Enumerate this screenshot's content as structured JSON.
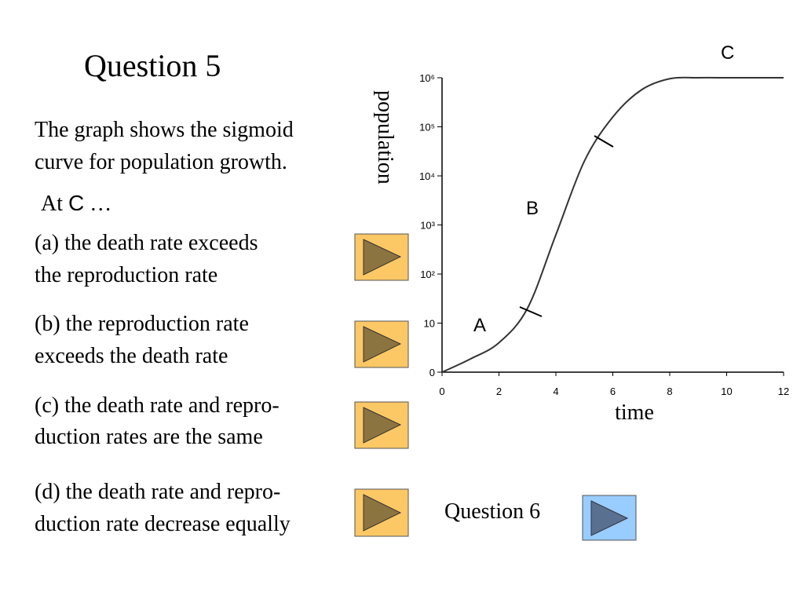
{
  "title": "Question 5",
  "intro": [
    "The graph shows the sigmoid",
    "curve for population growth."
  ],
  "prompt": {
    "before": "At",
    "letter": "C",
    "after": "…"
  },
  "options": [
    [
      "(a) the death rate exceeds",
      "the reproduction rate"
    ],
    [
      "(b) the reproduction rate",
      "exceeds the death rate"
    ],
    [
      "(c) the death rate and repro-",
      "duction rates are the same"
    ],
    [
      "(d) the death rate and repro-",
      "duction rate decrease equally"
    ]
  ],
  "next": "Question 6",
  "graph": {
    "type": "line",
    "xlabel": "time",
    "ylabel": "population",
    "xlim": [
      0,
      12
    ],
    "xticks": [
      0,
      2,
      4,
      6,
      8,
      10,
      12
    ],
    "ylim": [
      0,
      6
    ],
    "yticks": [
      0,
      {
        "value": 1,
        "label": "10"
      },
      {
        "value": 2,
        "label": "10²"
      },
      {
        "value": 3,
        "label": "10³"
      },
      {
        "value": 4,
        "label": "10⁴"
      },
      {
        "value": 5,
        "label": "10⁵"
      },
      {
        "value": 6,
        "label": "10⁶"
      }
    ],
    "x": [
      0,
      1,
      2,
      3,
      4,
      5,
      6,
      7,
      8,
      9,
      10,
      11,
      12
    ],
    "values": [
      0,
      0.27,
      0.6,
      1.3,
      2.8,
      4.3,
      5.2,
      5.75,
      5.98,
      6,
      6,
      6,
      6
    ],
    "color": "#333333",
    "annotations": [
      "A",
      "B",
      "C"
    ]
  }
}
